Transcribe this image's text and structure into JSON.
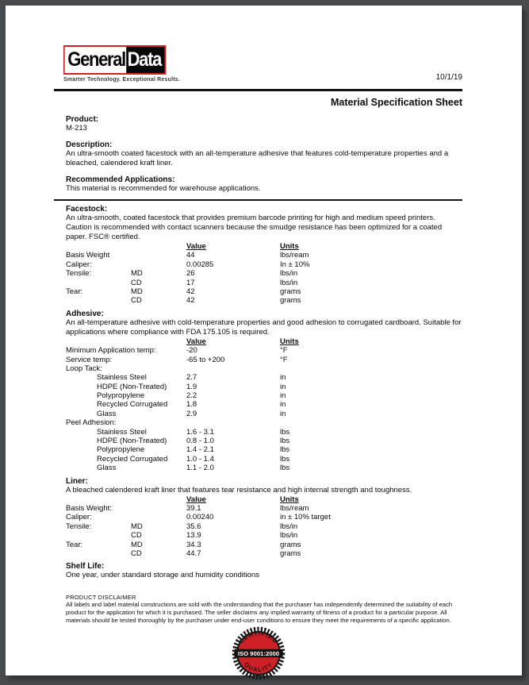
{
  "colors": {
    "frame_background": "#474b4e",
    "page_background": "#ffffff",
    "logo_red": "#d22027",
    "badge_red": "#ce2026",
    "badge_black": "#151515",
    "text": "#0c0c0c"
  },
  "logo": {
    "part1": "General",
    "part2": "Data",
    "tagline": "Smarter Technology. Exceptional Results."
  },
  "header": {
    "date": "10/1/19",
    "title": "Material Specification Sheet"
  },
  "columns": {
    "value": "Value",
    "units": "Units"
  },
  "intro": {
    "product_heading": "Product:",
    "product_value": "M-213",
    "description_heading": "Description:",
    "description_text": "An ultra-smooth coated facestock with an all-temperature adhesive that features cold-temperature properties and a bleached, calendered kraft liner.",
    "recommended_heading": "Recommended Applications:",
    "recommended_text": "This material is recommended for warehouse applications."
  },
  "sections": {
    "facestock": {
      "heading": "Facestock:",
      "text": "An ultra-smooth, coated facestock that provides premium barcode printing for high and medium speed printers. Caution is recommended with contact scanners because the smudge resistance has been optimized for a coated paper. FSC® certified.",
      "rows": [
        {
          "label": "Basis Weight",
          "sub": "",
          "value": "44",
          "units": "lbs/ream"
        },
        {
          "label": "Caliper:",
          "sub": "",
          "value": "0.00285",
          "units": "In ± 10%"
        },
        {
          "label": "Tensile:",
          "sub": "MD",
          "value": "26",
          "units": "lbs/in"
        },
        {
          "label": "",
          "sub": "CD",
          "value": "17",
          "units": "lbs/in"
        },
        {
          "label": "Tear:",
          "sub": "MD",
          "value": "42",
          "units": "grams"
        },
        {
          "label": "",
          "sub": "CD",
          "value": "42",
          "units": "grams"
        }
      ]
    },
    "adhesive": {
      "heading": "Adhesive:",
      "text": "An all-temperature adhesive with cold-temperature properties and good adhesion to corrugated cardboard. Suitable for applications where compliance with FDA 175.105 is required.",
      "rows": [
        {
          "label": "Minimum Application temp:",
          "sub": "",
          "value": "-20",
          "units": "°F"
        },
        {
          "label": "Service temp:",
          "sub": "",
          "value": "-65 to +200",
          "units": "°F"
        },
        {
          "label": "Loop Tack:",
          "sub": "",
          "value": "",
          "units": ""
        },
        {
          "label": "Stainless Steel",
          "indent": 1,
          "value": "2.7",
          "units": "in"
        },
        {
          "label": "HDPE (Non-Treated)",
          "indent": 1,
          "value": "1.9",
          "units": "in"
        },
        {
          "label": "Polypropylene",
          "indent": 1,
          "value": "2.2",
          "units": "in"
        },
        {
          "label": "Recycled Corrugated",
          "indent": 1,
          "value": "1.8",
          "units": "in"
        },
        {
          "label": "Glass",
          "indent": 1,
          "value": "2.9",
          "units": "in"
        },
        {
          "label": "Peel Adhesion:",
          "sub": "",
          "value": "",
          "units": ""
        },
        {
          "label": "Stainless Steel",
          "indent": 1,
          "value": "1.6 - 3.1",
          "units": "lbs"
        },
        {
          "label": "HDPE (Non-Treated)",
          "indent": 1,
          "value": "0.8 - 1.0",
          "units": "lbs"
        },
        {
          "label": "Polypropylene",
          "indent": 1,
          "value": "1.4 - 2.1",
          "units": "lbs"
        },
        {
          "label": "Recycled Corrugated",
          "indent": 1,
          "value": "1.0 - 1.4",
          "units": "lbs"
        },
        {
          "label": "Glass",
          "indent": 1,
          "value": "1.1 - 2.0",
          "units": "lbs"
        }
      ]
    },
    "liner": {
      "heading": "Liner:",
      "text": "A bleached calendered kraft liner that features tear resistance and high internal strength and toughness.",
      "rows": [
        {
          "label": "Basis Weight:",
          "sub": "",
          "value": "39.1",
          "units": "lbs/ream"
        },
        {
          "label": "Caliper:",
          "sub": "",
          "value": "0.00240",
          "units": "in ± 10% target"
        },
        {
          "label": "Tensile:",
          "sub": "MD",
          "value": "35.6",
          "units": "lbs/in"
        },
        {
          "label": "",
          "sub": "CD",
          "value": "13.9",
          "units": "lbs/in"
        },
        {
          "label": "Tear:",
          "sub": "MD",
          "value": "34.3",
          "units": "grams"
        },
        {
          "label": "",
          "sub": "CD",
          "value": "44.7",
          "units": "grams"
        }
      ]
    }
  },
  "shelf_life": {
    "heading": "Shelf Life:",
    "text": "One year, under standard storage and humidity conditions"
  },
  "disclaimer": {
    "heading": "PRODUCT DISCLAIMER",
    "text": "All labels and label material constructions are sold with the understanding that the purchaser has independently determined the suitability of each product for the application for which it is purchased. The seller disclaims any implied warranty of fitness of a product for a particular purpose. All materials should be tested thoroughly by the purchaser under end-user conditions to ensure they meet the requirements of a specific application."
  },
  "badge": {
    "top": "CERTIFIED",
    "middle": "ISO 9001:2000",
    "bottom": "QUALITY"
  }
}
